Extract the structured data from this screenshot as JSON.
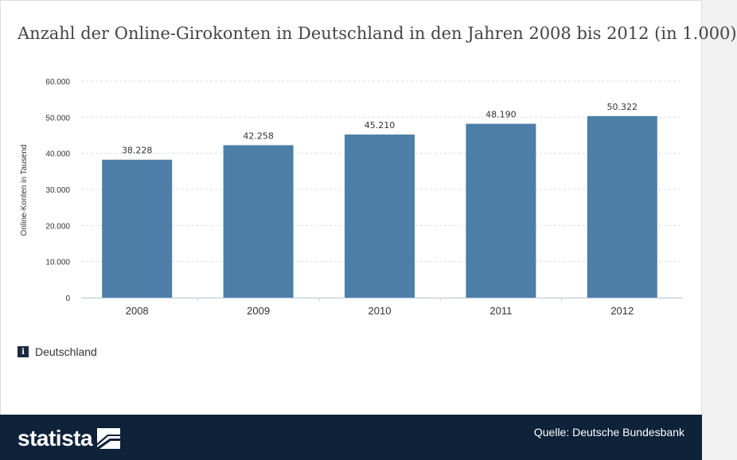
{
  "title": "Anzahl der Online-Girokonten in Deutschland in den Jahren 2008 bis 2012 (in 1.000)",
  "legend": {
    "icon": "info-icon",
    "label": "Deutschland"
  },
  "footer": {
    "brand": "statista",
    "source": "Quelle: Deutsche Bundesbank"
  },
  "colors": {
    "bar": "#4c7ea8",
    "footer": "#0e2239",
    "grid": "#dddddd"
  },
  "chart_data": {
    "type": "bar",
    "categories": [
      "2008",
      "2009",
      "2010",
      "2011",
      "2012"
    ],
    "values": [
      38228,
      42258,
      45210,
      48190,
      50322
    ],
    "value_labels": [
      "38.228",
      "42.258",
      "45.210",
      "48.190",
      "50.322"
    ],
    "title": "Anzahl der Online-Girokonten in Deutschland in den Jahren 2008 bis 2012 (in 1.000)",
    "xlabel": "",
    "ylabel": "Online-Konten in Tausend",
    "ylim": [
      0,
      60000
    ],
    "yticks": [
      0,
      10000,
      20000,
      30000,
      40000,
      50000,
      60000
    ],
    "ytick_labels": [
      "0",
      "10.000",
      "20.000",
      "30.000",
      "40.000",
      "50.000",
      "60.000"
    ],
    "grid": true,
    "legend_position": "bottom-left"
  }
}
